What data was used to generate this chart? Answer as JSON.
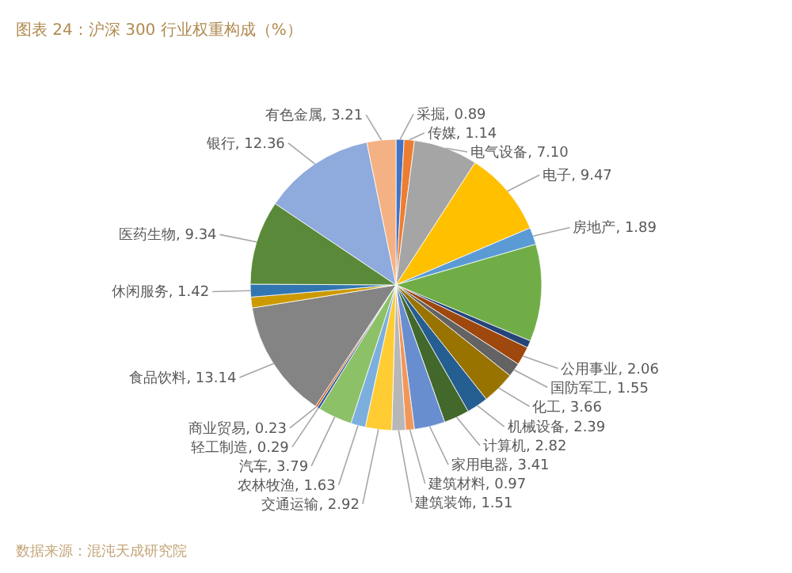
{
  "chart_data": {
    "type": "pie",
    "title": "图表 24：沪深 300 行业权重构成（%）",
    "categories": [
      "采掘",
      "传媒",
      "电气设备",
      "电子",
      "房地产",
      null,
      null,
      "公用事业",
      "国防军工",
      "化工",
      "机械设备",
      "计算机",
      "家用电器",
      "建筑材料",
      "建筑装饰",
      "交通运输",
      "农林牧渔",
      "汽车",
      "轻工制造",
      "商业贸易",
      "食品饮料",
      null,
      "休闲服务",
      "医药生物",
      "银行",
      "有色金属"
    ],
    "values": [
      0.89,
      1.14,
      7.1,
      9.47,
      1.89,
      10.8,
      0.8,
      2.06,
      1.55,
      3.66,
      2.39,
      2.82,
      3.41,
      0.97,
      1.51,
      2.92,
      1.63,
      3.79,
      0.29,
      0.23,
      13.14,
      1.2,
      1.42,
      9.34,
      12.36,
      3.21
    ],
    "value_labels": [
      "0.89",
      "1.14",
      "7.10",
      "9.47",
      "1.89",
      null,
      null,
      "2.06",
      "1.55",
      "3.66",
      "2.39",
      "2.82",
      "3.41",
      "0.97",
      "1.51",
      "2.92",
      "1.63",
      "3.79",
      "0.29",
      "0.23",
      "13.14",
      null,
      "1.42",
      "9.34",
      "12.36",
      "3.21"
    ],
    "colors": [
      "#4472c4",
      "#ed7d31",
      "#a5a5a5",
      "#ffc000",
      "#5b9bd5",
      "#70ad47",
      "#264478",
      "#9e480e",
      "#636363",
      "#997300",
      "#255e91",
      "#43682b",
      "#698ed0",
      "#f1975a",
      "#b7b7b7",
      "#ffcd33",
      "#7cafdd",
      "#8cc168",
      "#335aa1",
      "#d26012",
      "#848484",
      "#cc9a00",
      "#3276b1",
      "#5a8a39",
      "#8faadc",
      "#f4b183"
    ],
    "annotations": [
      "数据来源：混沌天成研究院"
    ]
  }
}
